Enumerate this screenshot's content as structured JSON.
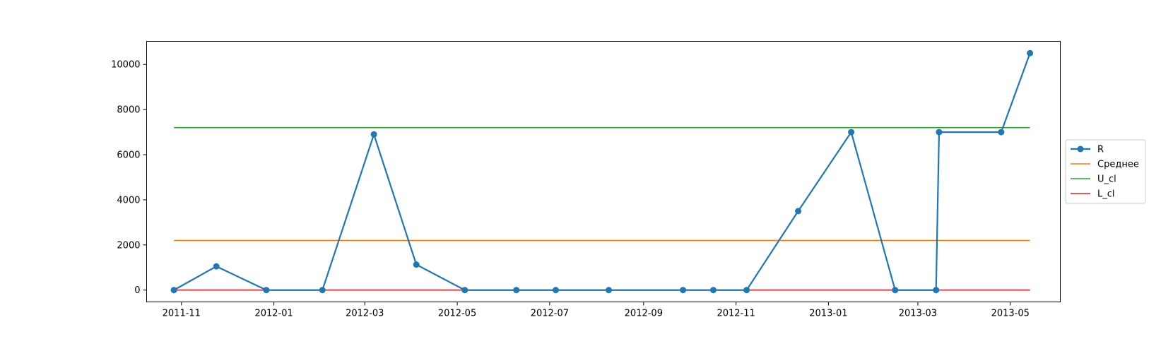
{
  "chart_data": {
    "type": "line",
    "title": "",
    "xlabel": "",
    "ylabel": "",
    "x_axis": {
      "type": "date",
      "range": [
        "2011-10-09",
        "2013-06-03"
      ],
      "ticks": [
        "2011-11-01",
        "2012-01-01",
        "2012-03-01",
        "2012-05-01",
        "2012-07-01",
        "2012-09-01",
        "2012-11-01",
        "2013-01-01",
        "2013-03-01",
        "2013-05-01"
      ],
      "tick_labels": [
        "2011-11",
        "2012-01",
        "2012-03",
        "2012-05",
        "2012-07",
        "2012-09",
        "2012-11",
        "2013-01",
        "2013-03",
        "2013-05"
      ]
    },
    "y_axis": {
      "range": [
        -525,
        11025
      ],
      "ticks": [
        0,
        2000,
        4000,
        6000,
        8000,
        10000
      ],
      "tick_labels": [
        "0",
        "2000",
        "4000",
        "6000",
        "8000",
        "10000"
      ]
    },
    "grid": false,
    "legend_position": "center-right",
    "series": [
      {
        "name": "R",
        "color": "#1f77b4",
        "marker": "circle",
        "points": [
          [
            "2011-10-27",
            0
          ],
          [
            "2011-11-24",
            1050
          ],
          [
            "2011-12-27",
            0
          ],
          [
            "2012-02-02",
            0
          ],
          [
            "2012-03-07",
            6900
          ],
          [
            "2012-04-04",
            1130
          ],
          [
            "2012-05-06",
            0
          ],
          [
            "2012-06-09",
            0
          ],
          [
            "2012-07-05",
            0
          ],
          [
            "2012-08-09",
            0
          ],
          [
            "2012-09-27",
            0
          ],
          [
            "2012-10-17",
            0
          ],
          [
            "2012-11-08",
            0
          ],
          [
            "2012-12-12",
            3500
          ],
          [
            "2013-01-16",
            7000
          ],
          [
            "2013-02-14",
            0
          ],
          [
            "2013-03-13",
            0
          ],
          [
            "2013-03-15",
            7000
          ],
          [
            "2013-04-25",
            7000
          ],
          [
            "2013-05-14",
            10500
          ]
        ]
      },
      {
        "name": "Среднее",
        "color": "#ff7f0e",
        "constant": 2200,
        "from": "2011-10-27",
        "to": "2013-05-14"
      },
      {
        "name": "U_cl",
        "color": "#2ca02c",
        "constant": 7200,
        "from": "2011-10-27",
        "to": "2013-05-14"
      },
      {
        "name": "L_cl",
        "color": "#d62728",
        "constant": 0,
        "from": "2011-10-27",
        "to": "2013-05-14"
      }
    ]
  }
}
